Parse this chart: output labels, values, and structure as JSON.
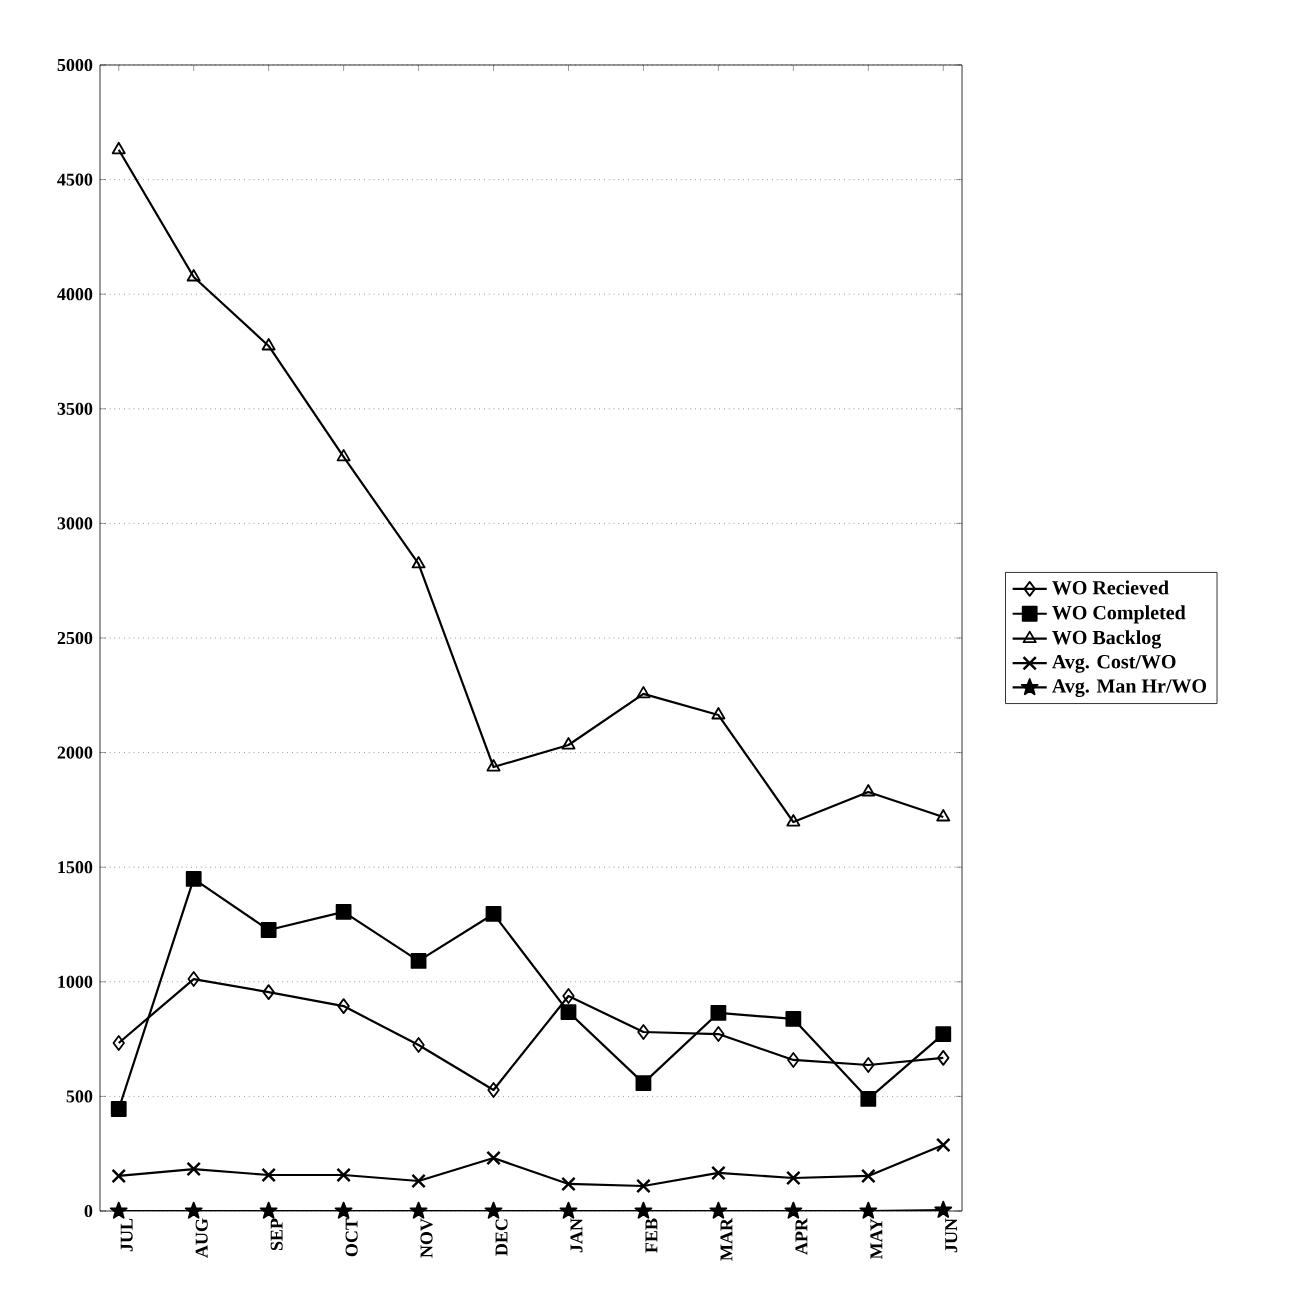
{
  "chart_data": {
    "type": "line",
    "categories": [
      "JUL",
      "AUG",
      "SEP",
      "OCT",
      "NOV",
      "DEC",
      "JAN",
      "FEB",
      "MAR",
      "APR",
      "MAY",
      "JUN"
    ],
    "series": [
      {
        "name": "WO Recieved",
        "color": "#000000",
        "marker": "diamond",
        "values": [
          733,
          1012,
          955,
          894,
          724,
          528,
          938,
          781,
          772,
          659,
          637,
          668
        ]
      },
      {
        "name": "WO Completed",
        "color": "#000000",
        "marker": "square",
        "values": [
          445,
          1449,
          1226,
          1305,
          1091,
          1296,
          868,
          558,
          864,
          838,
          489,
          772
        ]
      },
      {
        "name": "WO Backlog",
        "color": "#000000",
        "marker": "triangle",
        "values": [
          4630,
          4075,
          3774,
          3290,
          2823,
          1937,
          2033,
          2256,
          2164,
          1697,
          1828,
          1719
        ]
      },
      {
        "name": "Avg. Cost/WO",
        "color": "#000000",
        "marker": "cross",
        "values": [
          153,
          183,
          157,
          157,
          131,
          231,
          118,
          109,
          166,
          144,
          153,
          288
        ]
      },
      {
        "name": "Avg. Man Hr/WO",
        "color": "#000000",
        "marker": "star",
        "values": [
          0,
          0,
          0,
          0,
          0,
          0,
          0,
          0,
          0,
          0,
          0,
          4
        ]
      }
    ],
    "ylim": [
      0,
      5000
    ],
    "yticks": [
      0,
      500,
      1000,
      1500,
      2000,
      2500,
      3000,
      3500,
      4000,
      4500,
      5000
    ],
    "grid": "y",
    "legend": "right",
    "line_style": "solid"
  }
}
